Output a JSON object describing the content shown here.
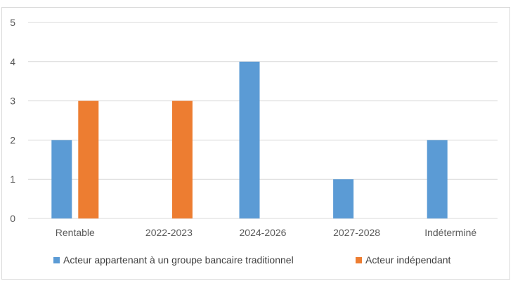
{
  "chart_data": {
    "type": "bar",
    "categories": [
      "Rentable",
      "2022-2023",
      "2024-2026",
      "2027-2028",
      "Indéterminé"
    ],
    "series": [
      {
        "name": "Acteur appartenant à un groupe bancaire traditionnel",
        "color": "#5b9bd5",
        "values": [
          2,
          0,
          4,
          1,
          2
        ]
      },
      {
        "name": "Acteur indépendant",
        "color": "#ed7d31",
        "values": [
          3,
          3,
          0,
          0,
          0
        ]
      }
    ],
    "title": "",
    "xlabel": "",
    "ylabel": "",
    "ylim": [
      0,
      5
    ],
    "yticks": [
      "0",
      "1",
      "2",
      "3",
      "4",
      "5"
    ],
    "grid": true,
    "legend_position": "bottom"
  }
}
